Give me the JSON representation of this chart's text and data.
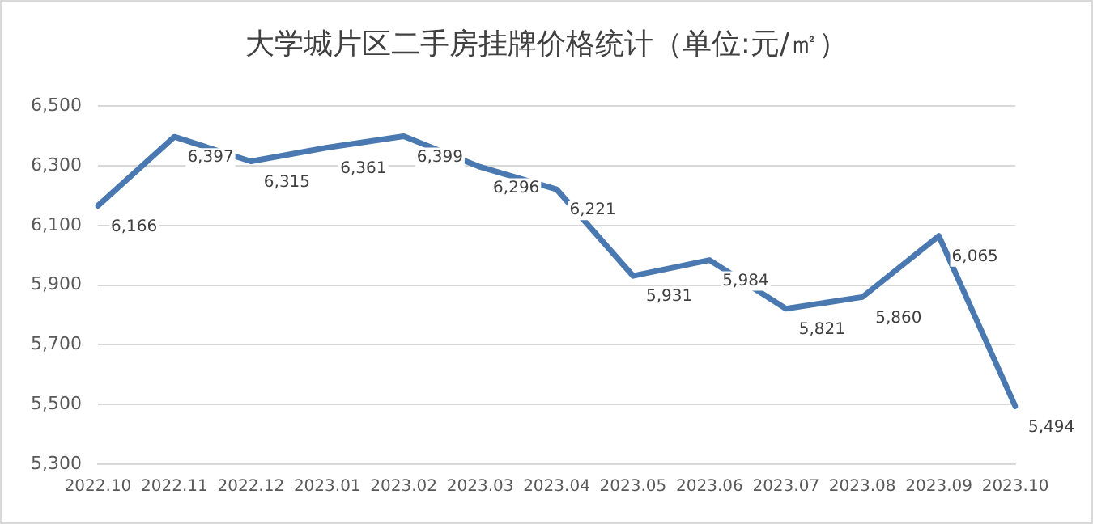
{
  "chart_data": {
    "type": "line",
    "title": "大学城片区二手房挂牌价格统计（单位:元/㎡）",
    "categories": [
      "2022.10",
      "2022.11",
      "2022.12",
      "2023.01",
      "2023.02",
      "2023.03",
      "2023.04",
      "2023.05",
      "2023.06",
      "2023.07",
      "2023.08",
      "2023.09",
      "2023.10"
    ],
    "series": [
      {
        "color": "#4a78b0",
        "values": [
          6166,
          6397,
          6315,
          6361,
          6399,
          6296,
          6221,
          5931,
          5984,
          5821,
          5860,
          6065,
          5494
        ],
        "value_labels": [
          "6,166",
          "6,397",
          "6,315",
          "6,361",
          "6,399",
          "6,296",
          "6,221",
          "5,931",
          "5,984",
          "5,821",
          "5,860",
          "6,065",
          "5,494"
        ]
      }
    ],
    "ylim": [
      5300,
      6500
    ],
    "yticks": [
      {
        "value": 5300,
        "label": "5,300"
      },
      {
        "value": 5500,
        "label": "5,500"
      },
      {
        "value": 5700,
        "label": "5,700"
      },
      {
        "value": 5900,
        "label": "5,900"
      },
      {
        "value": 6100,
        "label": "6,100"
      },
      {
        "value": 6300,
        "label": "6,300"
      },
      {
        "value": 6500,
        "label": "6,500"
      }
    ],
    "grid": "y",
    "marker": "none",
    "line_style": "solid"
  }
}
